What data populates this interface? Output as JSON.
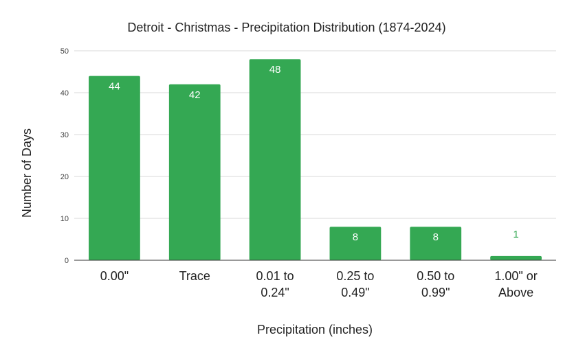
{
  "chart_data": {
    "type": "bar",
    "title": "Detroit - Christmas - Precipitation Distribution (1874-2024)",
    "xlabel": "Precipitation (inches)",
    "ylabel": "Number of Days",
    "categories": [
      [
        "0.00\""
      ],
      [
        "Trace"
      ],
      [
        "0.01 to",
        "0.24\""
      ],
      [
        "0.25 to",
        "0.49\""
      ],
      [
        "0.50 to",
        "0.99\""
      ],
      [
        "1.00\" or",
        "Above"
      ]
    ],
    "values": [
      44,
      42,
      48,
      8,
      8,
      1
    ],
    "data_labels": [
      "44",
      "42",
      "48",
      "8",
      "8",
      "1"
    ],
    "ylim": [
      0,
      50
    ],
    "yticks": [
      "0",
      "10",
      "20",
      "30",
      "40",
      "50"
    ],
    "grid": true,
    "legend": "none",
    "colors": {
      "bar": "#34a853",
      "label_inside": "#ffffff",
      "label_outside": "#34a853",
      "grid": "#d9d9d9",
      "baseline": "#333333"
    }
  }
}
